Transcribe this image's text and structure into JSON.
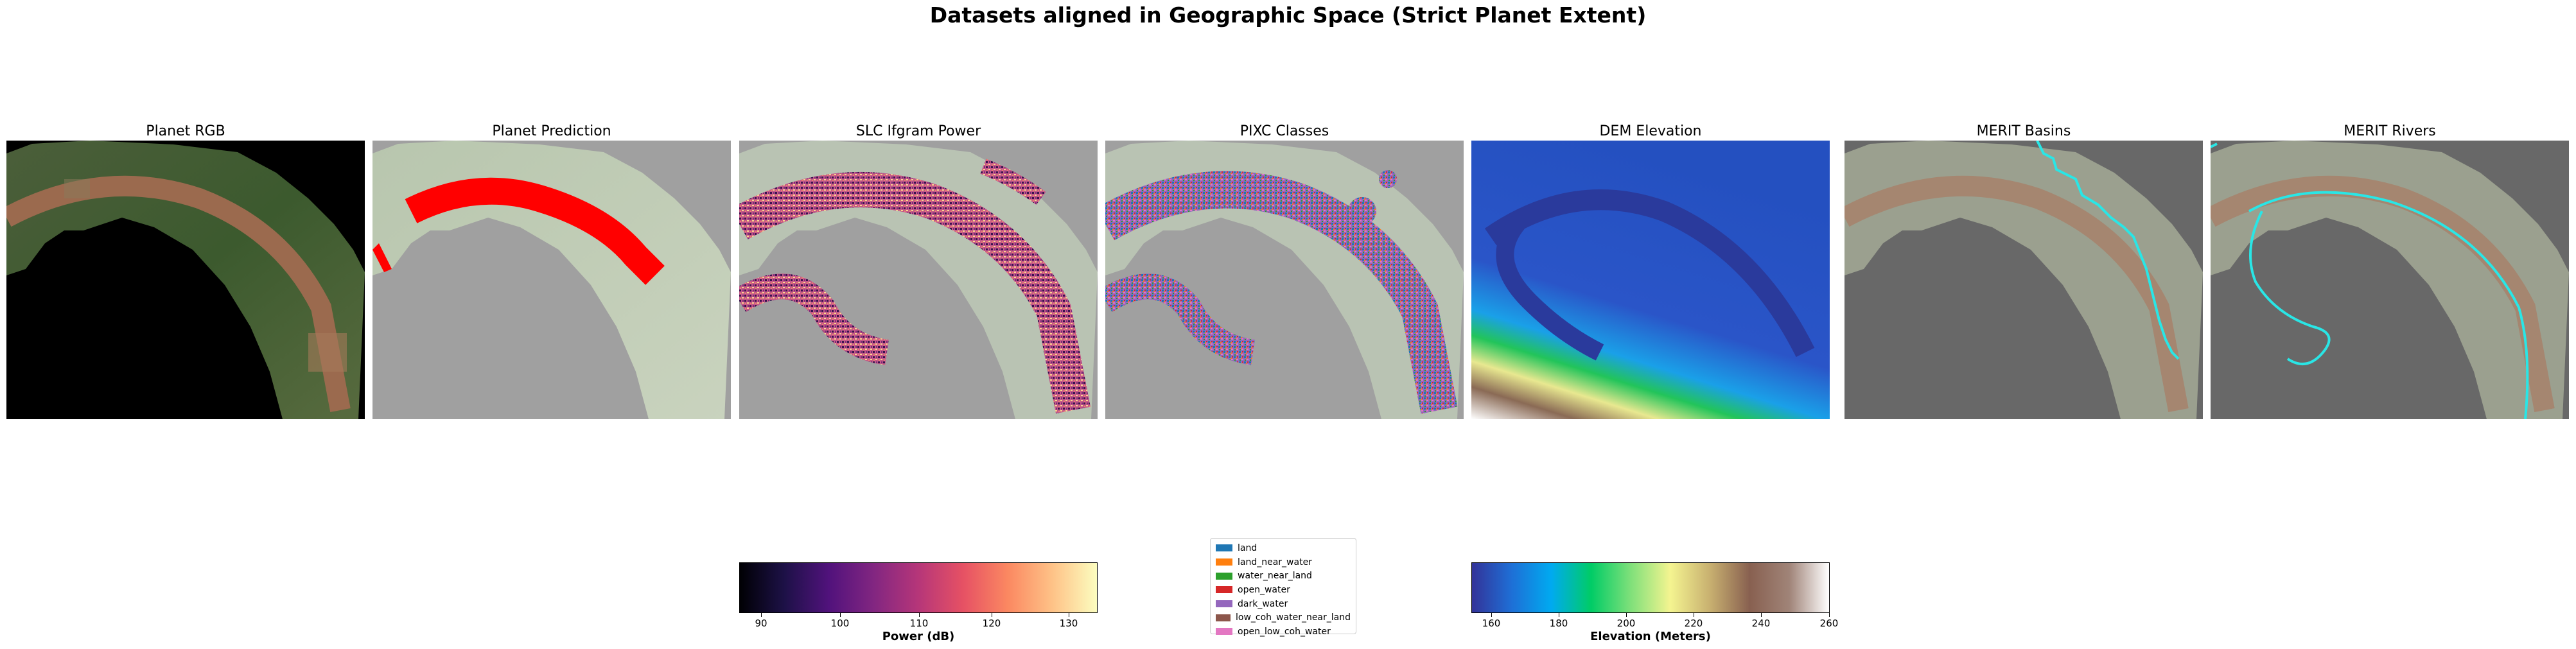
{
  "figure": {
    "title": "Datasets aligned in Geographic Space (Strict Planet Extent)"
  },
  "panels": [
    {
      "title": "Planet RGB"
    },
    {
      "title": "Planet Prediction"
    },
    {
      "title": "SLC Ifgram Power"
    },
    {
      "title": "PIXC Classes"
    },
    {
      "title": "DEM Elevation"
    },
    {
      "title": "MERIT Basins"
    },
    {
      "title": "MERIT Rivers"
    }
  ],
  "colors": {
    "land_green": "#3f5a30",
    "river_brown": "#9b6a4e",
    "prediction_red": "#ff0000",
    "overlay_gray": "#a0a0a0",
    "merit_line": "#29e6e6"
  },
  "power_colorbar": {
    "label": "Power (dB)",
    "ticks": [
      "90",
      "100",
      "110",
      "120",
      "130"
    ],
    "colormap": "magma"
  },
  "elevation_colorbar": {
    "label": "Elevation (Meters)",
    "ticks": [
      "160",
      "180",
      "200",
      "220",
      "240",
      "260"
    ],
    "colormap": "terrain"
  },
  "legend": {
    "items": [
      {
        "label": "land",
        "color": "#1f77b4"
      },
      {
        "label": "land_near_water",
        "color": "#ff7f0e"
      },
      {
        "label": "water_near_land",
        "color": "#2ca02c"
      },
      {
        "label": "open_water",
        "color": "#d62728"
      },
      {
        "label": "dark_water",
        "color": "#9467bd"
      },
      {
        "label": "low_coh_water_near_land",
        "color": "#8c564b"
      },
      {
        "label": "open_low_coh_water",
        "color": "#e377c2"
      }
    ]
  }
}
